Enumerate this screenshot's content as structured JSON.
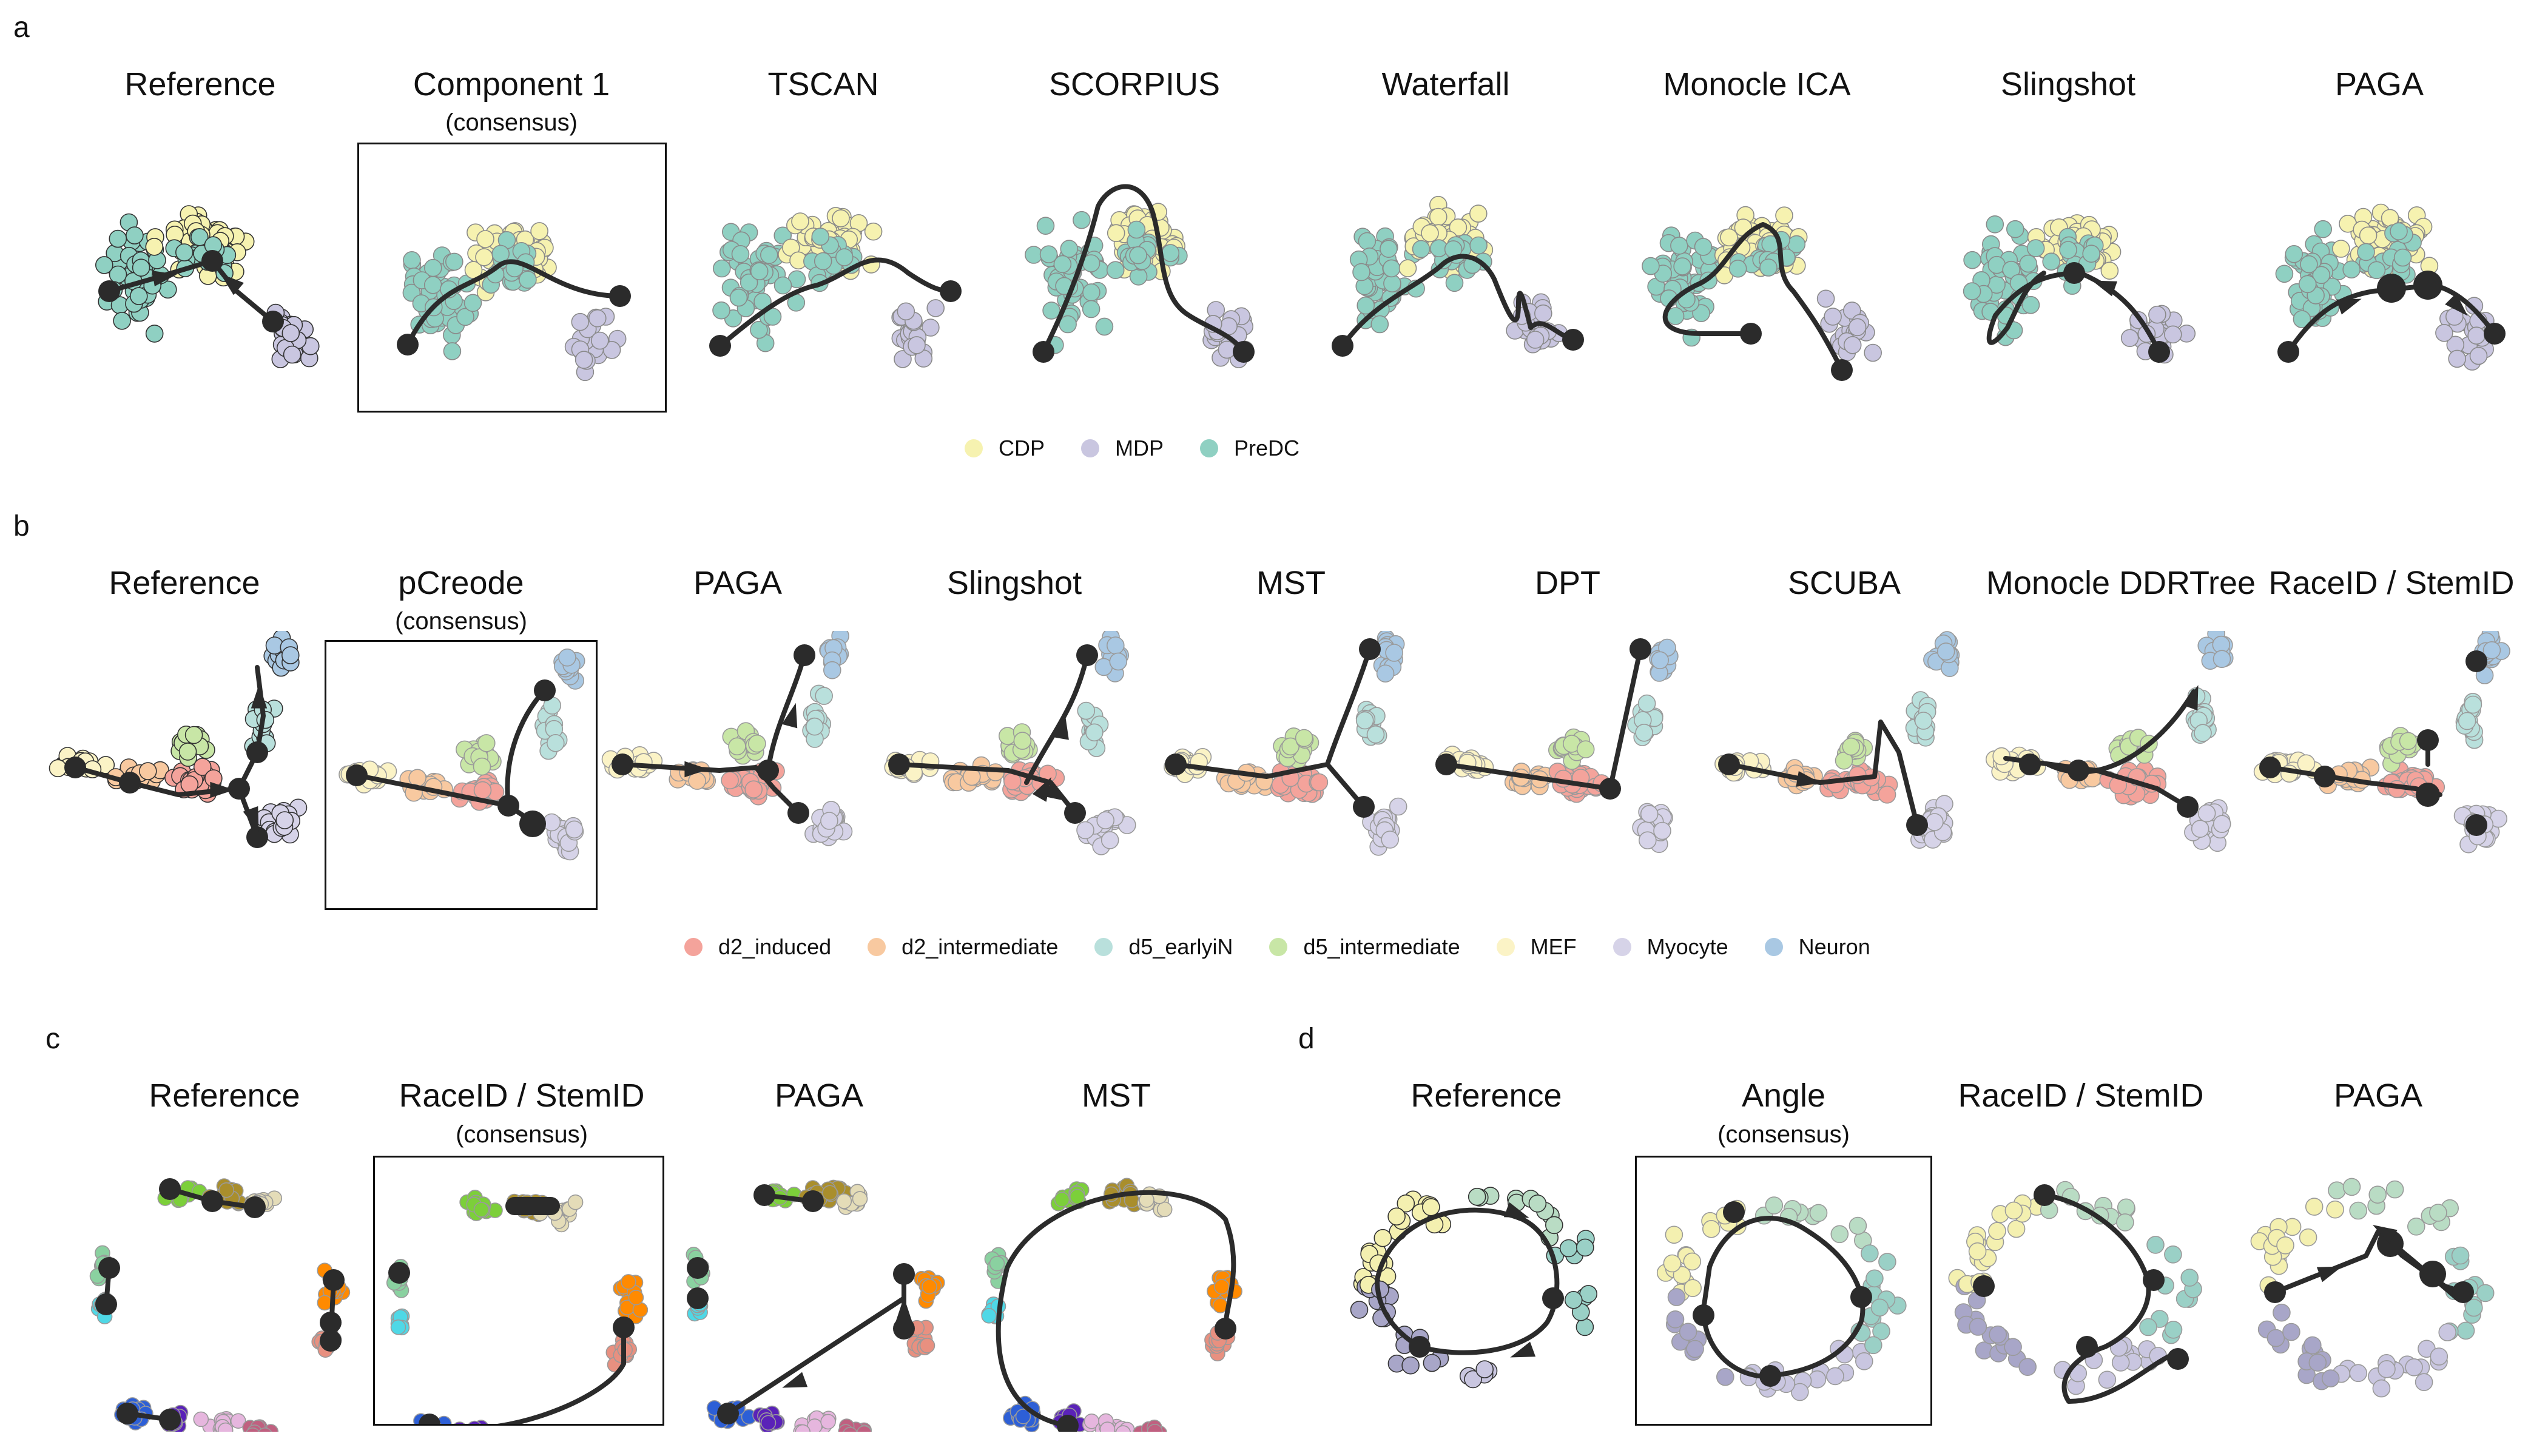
{
  "figure": {
    "panels": [
      {
        "letter": "a",
        "methods": [
          {
            "title": "Reference",
            "subtitle": ""
          },
          {
            "title": "Component 1",
            "subtitle": "(consensus)"
          },
          {
            "title": "TSCAN",
            "subtitle": ""
          },
          {
            "title": "SCORPIUS",
            "subtitle": ""
          },
          {
            "title": "Waterfall",
            "subtitle": ""
          },
          {
            "title": "Monocle ICA",
            "subtitle": ""
          },
          {
            "title": "Slingshot",
            "subtitle": ""
          },
          {
            "title": "PAGA",
            "subtitle": ""
          }
        ],
        "legend": [
          {
            "label": "CDP",
            "color": "#f6f2b0"
          },
          {
            "label": "MDP",
            "color": "#c9c6e0"
          },
          {
            "label": "PreDC",
            "color": "#8fd0c2"
          }
        ]
      },
      {
        "letter": "b",
        "methods": [
          {
            "title": "Reference",
            "subtitle": ""
          },
          {
            "title": "pCreode",
            "subtitle": "(consensus)"
          },
          {
            "title": "PAGA",
            "subtitle": ""
          },
          {
            "title": "Slingshot",
            "subtitle": ""
          },
          {
            "title": "MST",
            "subtitle": ""
          },
          {
            "title": "DPT",
            "subtitle": ""
          },
          {
            "title": "SCUBA",
            "subtitle": ""
          },
          {
            "title": "Monocle DDRTree",
            "subtitle": ""
          },
          {
            "title": "RaceID / StemID",
            "subtitle": ""
          }
        ],
        "legend": [
          {
            "label": "d2_induced",
            "color": "#f4a39b"
          },
          {
            "label": "d2_intermediate",
            "color": "#f8c9a0"
          },
          {
            "label": "d5_earlyiN",
            "color": "#b9e0dc"
          },
          {
            "label": "d5_intermediate",
            "color": "#c8e6a6"
          },
          {
            "label": "MEF",
            "color": "#fbf3c6"
          },
          {
            "label": "Myocyte",
            "color": "#d6d3e8"
          },
          {
            "label": "Neuron",
            "color": "#a9c8e3"
          }
        ]
      },
      {
        "letter": "c",
        "methods": [
          {
            "title": "Reference",
            "subtitle": ""
          },
          {
            "title": "RaceID / StemID",
            "subtitle": "(consensus)"
          },
          {
            "title": "PAGA",
            "subtitle": ""
          },
          {
            "title": "MST",
            "subtitle": ""
          }
        ],
        "legend": []
      },
      {
        "letter": "d",
        "methods": [
          {
            "title": "Reference",
            "subtitle": ""
          },
          {
            "title": "Angle",
            "subtitle": "(consensus)"
          },
          {
            "title": "RaceID / StemID",
            "subtitle": ""
          },
          {
            "title": "PAGA",
            "subtitle": ""
          }
        ],
        "legend": []
      }
    ],
    "colors": {
      "trajectory": "#2b2b2b",
      "c_clusters": [
        "#7ccf3a",
        "#a98e2c",
        "#e4dcb8",
        "#8ad1a0",
        "#4fd8e6",
        "#ff8a00",
        "#e89080",
        "#2d5fd6",
        "#5a22b8",
        "#e6b6de",
        "#c06080"
      ],
      "d_gradient": [
        "#f4f0b0",
        "#b9dcc4",
        "#9ad0c6",
        "#c9c6e0",
        "#a8a6c8"
      ]
    }
  }
}
